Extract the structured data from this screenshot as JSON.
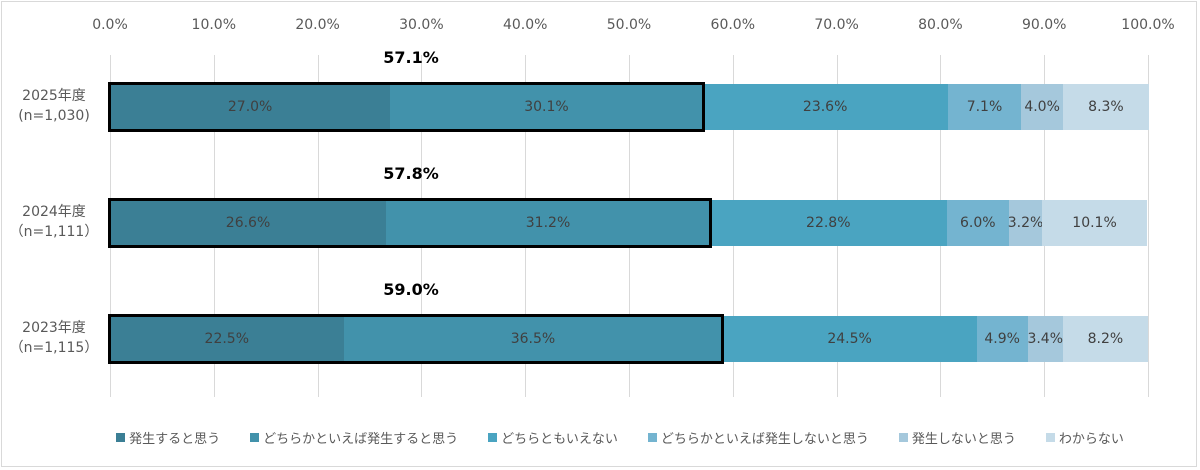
{
  "chart_data": {
    "type": "bar",
    "orientation": "horizontal",
    "stacked": "percent",
    "title": "",
    "xlabel": "",
    "ylabel": "",
    "xlim": [
      0,
      100
    ],
    "x_ticks": [
      "0.0%",
      "10.0%",
      "20.0%",
      "30.0%",
      "40.0%",
      "50.0%",
      "60.0%",
      "70.0%",
      "80.0%",
      "90.0%",
      "100.0%"
    ],
    "grid": true,
    "legend_position": "bottom",
    "categories": [
      {
        "label": "2025年度",
        "sub": "(n=1,030)"
      },
      {
        "label": "2024年度",
        "sub": "（n=1,111）"
      },
      {
        "label": "2023年度",
        "sub": "（n=1,115）"
      }
    ],
    "series": [
      {
        "name": "発生すると思う",
        "color": "#3b7f95",
        "values": [
          27.0,
          26.6,
          22.5
        ],
        "labels": [
          "27.0%",
          "26.6%",
          "22.5%"
        ]
      },
      {
        "name": "どちらかといえば発生すると思う",
        "color": "#4292ab",
        "values": [
          30.1,
          31.2,
          36.5
        ],
        "labels": [
          "30.1%",
          "31.2%",
          "36.5%"
        ]
      },
      {
        "name": "どちらともいえない",
        "color": "#4aa4c1",
        "values": [
          23.6,
          22.8,
          24.5
        ],
        "labels": [
          "23.6%",
          "22.8%",
          "24.5%"
        ]
      },
      {
        "name": "どちらかといえば発生しないと思う",
        "color": "#74b4d0",
        "values": [
          7.1,
          6.0,
          4.9
        ],
        "labels": [
          "7.1%",
          "6.0%",
          "4.9%"
        ]
      },
      {
        "name": "発生しないと思う",
        "color": "#a5c8dc",
        "values": [
          4.0,
          3.2,
          3.4
        ],
        "labels": [
          "4.0%",
          "3.2%",
          "3.4%"
        ]
      },
      {
        "name": "わからない",
        "color": "#c5dbe8",
        "values": [
          8.3,
          10.1,
          8.2
        ],
        "labels": [
          "8.3%",
          "10.1%",
          "8.2%"
        ]
      }
    ],
    "annotations": [
      {
        "category": "2025年度",
        "text": "57.1%",
        "value": 57.1,
        "note": "sum of first two series, boxed"
      },
      {
        "category": "2024年度",
        "text": "57.8%",
        "value": 57.8,
        "note": "sum of first two series, boxed"
      },
      {
        "category": "2023年度",
        "text": "59.0%",
        "value": 59.0,
        "note": "sum of first two series, boxed"
      }
    ]
  }
}
